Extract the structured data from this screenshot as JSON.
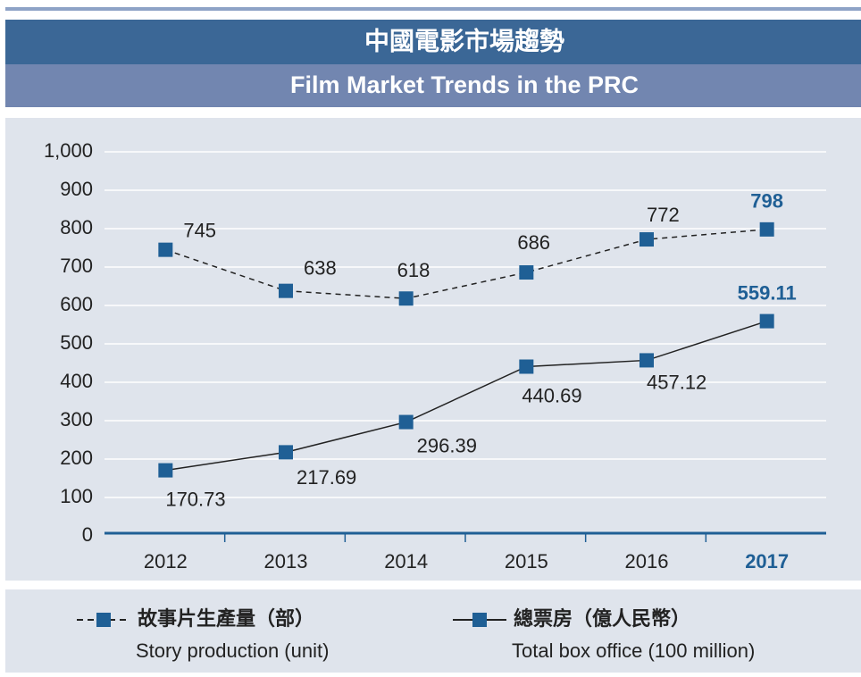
{
  "chart_data": {
    "type": "line",
    "title": "中國電影市場趨勢",
    "subtitle": "Film Market Trends in the PRC",
    "categories": [
      "2012",
      "2013",
      "2014",
      "2015",
      "2016",
      "2017"
    ],
    "series": [
      {
        "name": "故事片生產量（部）",
        "name_en": "Story production (unit)",
        "color": "#1f5f95",
        "dashed": true,
        "values": [
          745,
          638,
          618,
          686,
          772,
          798
        ]
      },
      {
        "name": "總票房（億人民幣）",
        "name_en": "Total box office (100 million)",
        "color": "#1f5f95",
        "dashed": false,
        "values": [
          170.73,
          217.69,
          296.39,
          440.69,
          457.12,
          559.11
        ]
      }
    ],
    "ylim": [
      0,
      1000
    ],
    "yticks": [
      0,
      100,
      200,
      300,
      400,
      500,
      600,
      700,
      800,
      900,
      {
        "value": 1000,
        "label": "1,000"
      }
    ],
    "grid": true
  }
}
